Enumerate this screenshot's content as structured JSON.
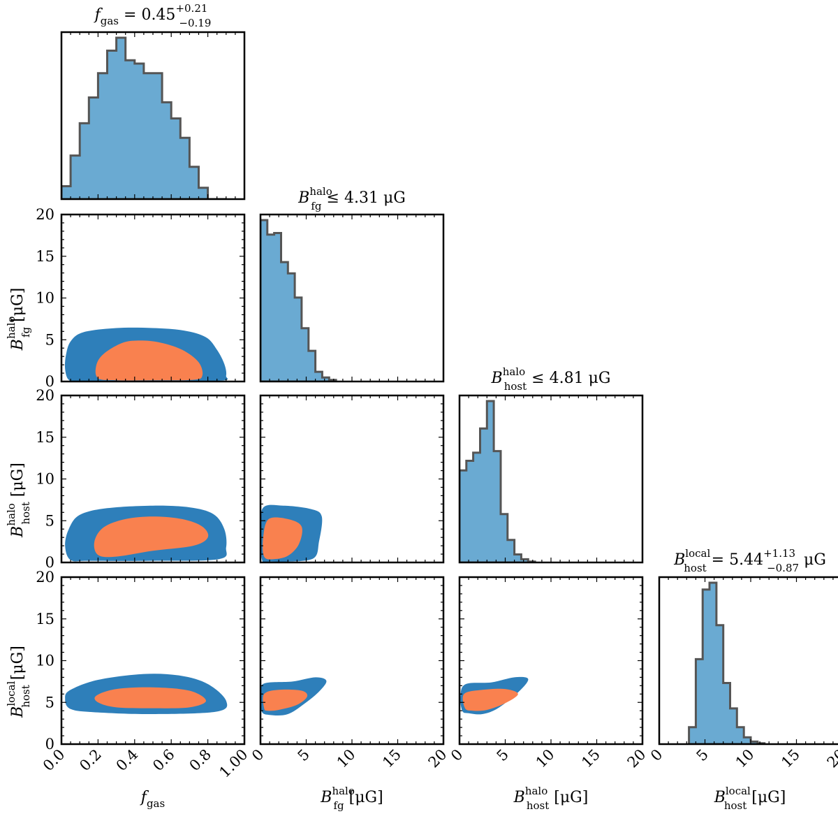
{
  "figure": {
    "type": "corner_plot",
    "colors": {
      "hist_fill": "#6aaad2",
      "hist_edge": "#555555",
      "contour_95": "#2e7fba",
      "contour_68": "#f9814f",
      "axis": "#000000"
    }
  },
  "titles": {
    "fgas": {
      "sym": "f",
      "sub": "gas",
      "sup": "",
      "rel": "= 0.45",
      "up": "+0.21",
      "down": "−0.19",
      "unit": ""
    },
    "bfg": {
      "sym": "B",
      "sub": "fg",
      "sup": "halo",
      "rel": "≤ 4.31",
      "up": "",
      "down": "",
      "unit": "μG"
    },
    "bhost": {
      "sym": "B",
      "sub": "host",
      "sup": "halo",
      "rel": "≤ 4.81",
      "up": "",
      "down": "",
      "unit": "μG"
    },
    "blocal": {
      "sym": "B",
      "sub": "host",
      "sup": "local",
      "rel": "= 5.44",
      "up": "+1.13",
      "down": "−0.87",
      "unit": "μG"
    }
  },
  "xlabels": {
    "fgas": {
      "sym": "f",
      "sub": "gas",
      "sup": "",
      "unit": ""
    },
    "bfg": {
      "sym": "B",
      "sub": "fg",
      "sup": "halo",
      "unit": "[μG]"
    },
    "bhost": {
      "sym": "B",
      "sub": "host",
      "sup": "halo",
      "unit": "[μG]"
    },
    "blocal": {
      "sym": "B",
      "sub": "host",
      "sup": "local",
      "unit": "[μG]"
    }
  },
  "ylabels": {
    "bfg": {
      "sym": "B",
      "sub": "fg",
      "sup": "halo",
      "unit": "[μG]"
    },
    "bhost": {
      "sym": "B",
      "sub": "host",
      "sup": "halo",
      "unit": "[μG]"
    },
    "blocal": {
      "sym": "B",
      "sub": "host",
      "sup": "local",
      "unit": "[μG]"
    }
  },
  "ticks": {
    "fgas": [
      "0.0",
      "0.2",
      "0.4",
      "0.6",
      "0.8",
      "1.00"
    ],
    "b": [
      "0",
      "5",
      "10",
      "15",
      "20"
    ]
  },
  "chart_data": [
    {
      "type": "histogram",
      "panel": "fgas-hist",
      "xlim": [
        0,
        1
      ],
      "bin_edges": [
        0,
        0.05,
        0.1,
        0.15,
        0.2,
        0.25,
        0.3,
        0.35,
        0.4,
        0.45,
        0.5,
        0.55,
        0.6,
        0.65,
        0.7,
        0.75,
        0.8,
        0.85,
        0.9
      ],
      "heights": [
        0.08,
        0.27,
        0.47,
        0.63,
        0.78,
        0.92,
        1.0,
        0.86,
        0.84,
        0.78,
        0.78,
        0.6,
        0.5,
        0.38,
        0.2,
        0.07,
        0.0,
        0.0
      ]
    },
    {
      "type": "histogram",
      "panel": "bfg-hist",
      "xlim": [
        0,
        20
      ],
      "bin_edges": [
        0,
        0.75,
        1.5,
        2.25,
        3.0,
        3.75,
        4.5,
        5.25,
        6.0,
        6.75,
        7.5,
        8.25
      ],
      "heights": [
        1.0,
        0.91,
        0.92,
        0.74,
        0.67,
        0.52,
        0.33,
        0.19,
        0.06,
        0.025,
        0.01
      ]
    },
    {
      "type": "histogram",
      "panel": "bhost-hist",
      "xlim": [
        0,
        20
      ],
      "bin_edges": [
        0,
        0.75,
        1.5,
        2.25,
        3.0,
        3.75,
        4.5,
        5.25,
        6.0,
        6.75,
        7.5,
        8.25
      ],
      "heights": [
        0.57,
        0.63,
        0.68,
        0.83,
        1.0,
        0.69,
        0.3,
        0.14,
        0.05,
        0.02,
        0.005
      ]
    },
    {
      "type": "histogram",
      "panel": "blocal-hist",
      "xlim": [
        0,
        20
      ],
      "bin_edges": [
        3.25,
        4.0,
        4.75,
        5.5,
        6.25,
        7.0,
        7.75,
        8.5,
        9.25,
        10.0,
        10.75,
        11.5
      ],
      "heights": [
        0.1,
        0.5,
        0.91,
        0.95,
        0.7,
        0.36,
        0.21,
        0.1,
        0.04,
        0.015,
        0.005
      ]
    },
    {
      "type": "contour",
      "panel": "bfg-vs-fgas",
      "xlim": [
        0,
        1
      ],
      "ylim": [
        0,
        20
      ],
      "levels": [
        {
          "level": "95%",
          "points": [
            [
              0.04,
              0.2
            ],
            [
              0.02,
              1.5
            ],
            [
              0.025,
              3.2
            ],
            [
              0.05,
              4.8
            ],
            [
              0.12,
              5.9
            ],
            [
              0.3,
              6.4
            ],
            [
              0.5,
              6.4
            ],
            [
              0.67,
              6.1
            ],
            [
              0.79,
              5.3
            ],
            [
              0.85,
              3.8
            ],
            [
              0.89,
              2.1
            ],
            [
              0.9,
              0.7
            ],
            [
              0.87,
              0.1
            ],
            [
              0.5,
              0.05
            ],
            [
              0.1,
              0.05
            ]
          ]
        },
        {
          "level": "68%",
          "points": [
            [
              0.2,
              0.4
            ],
            [
              0.19,
              1.9
            ],
            [
              0.23,
              3.3
            ],
            [
              0.33,
              4.6
            ],
            [
              0.42,
              4.9
            ],
            [
              0.53,
              4.7
            ],
            [
              0.66,
              3.8
            ],
            [
              0.75,
              2.3
            ],
            [
              0.77,
              0.7
            ],
            [
              0.72,
              0.2
            ],
            [
              0.5,
              0.15
            ],
            [
              0.3,
              0.15
            ]
          ]
        }
      ]
    },
    {
      "type": "contour",
      "panel": "bhost-vs-fgas",
      "xlim": [
        0,
        1
      ],
      "ylim": [
        0,
        20
      ],
      "levels": [
        {
          "level": "95%",
          "points": [
            [
              0.05,
              0.3
            ],
            [
              0.02,
              2.0
            ],
            [
              0.04,
              4.0
            ],
            [
              0.1,
              5.7
            ],
            [
              0.25,
              6.5
            ],
            [
              0.5,
              6.8
            ],
            [
              0.7,
              6.6
            ],
            [
              0.83,
              5.8
            ],
            [
              0.89,
              4.0
            ],
            [
              0.9,
              1.8
            ],
            [
              0.86,
              0.4
            ],
            [
              0.5,
              0.2
            ],
            [
              0.15,
              0.2
            ]
          ]
        },
        {
          "level": "68%",
          "points": [
            [
              0.2,
              0.9
            ],
            [
              0.18,
              2.5
            ],
            [
              0.23,
              4.2
            ],
            [
              0.35,
              5.2
            ],
            [
              0.5,
              5.5
            ],
            [
              0.66,
              5.2
            ],
            [
              0.77,
              4.3
            ],
            [
              0.8,
              3.0
            ],
            [
              0.72,
              2.0
            ],
            [
              0.5,
              1.4
            ],
            [
              0.3,
              0.7
            ]
          ]
        }
      ]
    },
    {
      "type": "contour",
      "panel": "blocal-vs-fgas",
      "xlim": [
        0,
        1
      ],
      "ylim": [
        0,
        20
      ],
      "levels": [
        {
          "level": "95%",
          "points": [
            [
              0.05,
              4.2
            ],
            [
              0.02,
              5.5
            ],
            [
              0.05,
              6.5
            ],
            [
              0.2,
              7.7
            ],
            [
              0.45,
              8.4
            ],
            [
              0.65,
              8.2
            ],
            [
              0.8,
              7.2
            ],
            [
              0.9,
              5.2
            ],
            [
              0.85,
              3.9
            ],
            [
              0.5,
              3.6
            ],
            [
              0.2,
              3.8
            ]
          ]
        },
        {
          "level": "68%",
          "points": [
            [
              0.2,
              5.0
            ],
            [
              0.19,
              5.8
            ],
            [
              0.3,
              6.6
            ],
            [
              0.5,
              6.8
            ],
            [
              0.7,
              6.4
            ],
            [
              0.79,
              5.2
            ],
            [
              0.7,
              4.4
            ],
            [
              0.5,
              4.3
            ],
            [
              0.3,
              4.4
            ]
          ]
        }
      ]
    },
    {
      "type": "contour",
      "panel": "bhost-vs-bfg",
      "xlim": [
        0,
        20
      ],
      "ylim": [
        0,
        20
      ],
      "levels": [
        {
          "level": "95%",
          "points": [
            [
              0.2,
              0.2
            ],
            [
              0.05,
              3.0
            ],
            [
              0.25,
              6.5
            ],
            [
              2.5,
              6.8
            ],
            [
              5.5,
              6.4
            ],
            [
              6.7,
              5.5
            ],
            [
              6.4,
              2.5
            ],
            [
              5.8,
              0.5
            ],
            [
              3.0,
              0.1
            ],
            [
              1.0,
              0.1
            ]
          ]
        },
        {
          "level": "68%",
          "points": [
            [
              0.4,
              0.7
            ],
            [
              0.3,
              3.0
            ],
            [
              0.9,
              5.2
            ],
            [
              3.0,
              5.2
            ],
            [
              4.5,
              4.3
            ],
            [
              4.2,
              2.2
            ],
            [
              3.0,
              0.8
            ],
            [
              1.5,
              0.4
            ]
          ]
        }
      ]
    },
    {
      "type": "contour",
      "panel": "blocal-vs-bfg",
      "xlim": [
        0,
        20
      ],
      "ylim": [
        0,
        20
      ],
      "levels": [
        {
          "level": "95%",
          "points": [
            [
              0.1,
              4.0
            ],
            [
              0.05,
              6.3
            ],
            [
              0.5,
              7.3
            ],
            [
              3.5,
              7.5
            ],
            [
              6.0,
              8.0
            ],
            [
              7.2,
              7.6
            ],
            [
              6.5,
              6.4
            ],
            [
              5.0,
              5.0
            ],
            [
              3.0,
              3.6
            ],
            [
              1.0,
              3.5
            ]
          ]
        },
        {
          "level": "68%",
          "points": [
            [
              0.4,
              4.3
            ],
            [
              0.4,
              6.0
            ],
            [
              2.0,
              6.5
            ],
            [
              4.5,
              6.4
            ],
            [
              5.1,
              5.7
            ],
            [
              4.0,
              4.7
            ],
            [
              2.0,
              4.1
            ],
            [
              0.8,
              4.0
            ]
          ]
        }
      ]
    },
    {
      "type": "contour",
      "panel": "blocal-vs-bhost",
      "xlim": [
        0,
        20
      ],
      "ylim": [
        0,
        20
      ],
      "levels": [
        {
          "level": "95%",
          "points": [
            [
              0.3,
              4.0
            ],
            [
              0.1,
              5.8
            ],
            [
              0.7,
              7.2
            ],
            [
              3.5,
              7.4
            ],
            [
              6.0,
              8.0
            ],
            [
              7.5,
              7.8
            ],
            [
              6.5,
              6.3
            ],
            [
              4.2,
              4.3
            ],
            [
              2.5,
              3.6
            ],
            [
              1.0,
              3.7
            ]
          ]
        },
        {
          "level": "68%",
          "points": [
            [
              0.6,
              4.3
            ],
            [
              0.5,
              6.0
            ],
            [
              2.5,
              6.5
            ],
            [
              5.0,
              6.6
            ],
            [
              6.4,
              6.0
            ],
            [
              5.0,
              4.9
            ],
            [
              3.0,
              4.1
            ],
            [
              1.5,
              4.0
            ]
          ]
        }
      ]
    }
  ]
}
